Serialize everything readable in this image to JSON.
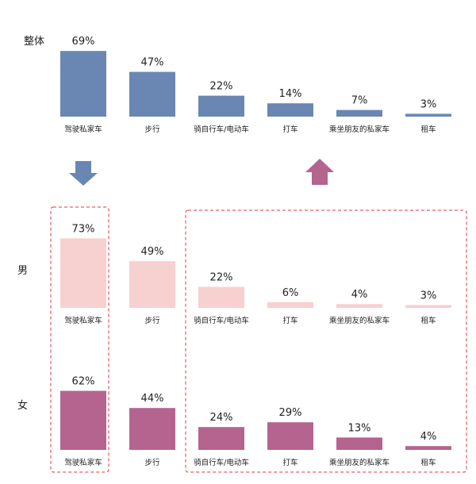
{
  "colors": {
    "overall": "#6a87b3",
    "male": "#f7d0d0",
    "female": "#b5648f",
    "highlight_box": "#e23a3a"
  },
  "icons": {
    "down_arrow": "down-arrow-icon",
    "up_arrow": "up-arrow-icon"
  },
  "chart_data": {
    "type": "bar",
    "unit": "%",
    "ylim": [
      0,
      100
    ],
    "categories": [
      "驾驶私家车",
      "步行",
      "骑自行车/电动车",
      "打车",
      "乘坐朋友的私家车",
      "租车"
    ],
    "series": [
      {
        "name": "整体",
        "values": [
          69,
          47,
          22,
          14,
          7,
          3
        ],
        "value_labels": [
          "69%",
          "47%",
          "22%",
          "14%",
          "7%",
          "3%"
        ]
      },
      {
        "name": "男",
        "values": [
          73,
          49,
          22,
          6,
          4,
          3
        ],
        "value_labels": [
          "73%",
          "49%",
          "22%",
          "6%",
          "4%",
          "3%"
        ]
      },
      {
        "name": "女",
        "values": [
          62,
          44,
          24,
          29,
          13,
          4
        ],
        "value_labels": [
          "62%",
          "44%",
          "24%",
          "29%",
          "13%",
          "4%"
        ]
      }
    ],
    "grid": false
  }
}
